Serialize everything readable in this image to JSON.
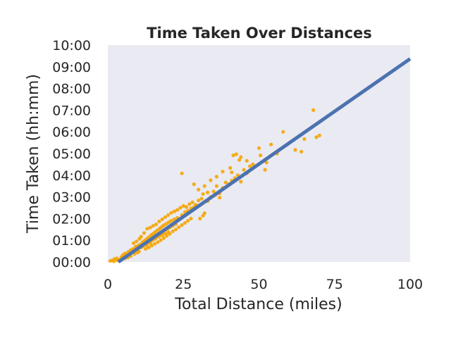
{
  "chart_data": {
    "type": "scatter",
    "title": "Time Taken Over Distances",
    "xlabel": "Total Distance (miles)",
    "ylabel": "Time Taken (hh:mm)",
    "xlim": [
      0,
      100
    ],
    "ylim": [
      0,
      600
    ],
    "y_unit": "minutes",
    "grid": false,
    "x_ticks": [
      0,
      25,
      50,
      75,
      100
    ],
    "x_tick_labels": [
      "0",
      "25",
      "50",
      "75",
      "100"
    ],
    "y_ticks": [
      0,
      60,
      120,
      180,
      240,
      300,
      360,
      420,
      480,
      540,
      600
    ],
    "y_tick_labels": [
      "00:00",
      "01:00",
      "02:00",
      "03:00",
      "04:00",
      "05:00",
      "06:00",
      "07:00",
      "08:00",
      "09:00",
      "10:00"
    ],
    "colors": {
      "background": "#eaeaf2",
      "points": "#f5a500",
      "regression": "#4c72b0"
    },
    "regression": {
      "x": [
        3.5,
        100
      ],
      "y": [
        0,
        562
      ]
    },
    "series": [
      {
        "points": [
          [
            0.8,
            3
          ],
          [
            1.5,
            4
          ],
          [
            2.2,
            8
          ],
          [
            3.0,
            10
          ],
          [
            3.8,
            6
          ],
          [
            4.5,
            14
          ],
          [
            5.1,
            20
          ],
          [
            5.8,
            24
          ],
          [
            6.2,
            16
          ],
          [
            6.8,
            28
          ],
          [
            7.1,
            19
          ],
          [
            7.6,
            33
          ],
          [
            8.0,
            26
          ],
          [
            8.4,
            36
          ],
          [
            8.9,
            31
          ],
          [
            9.2,
            42
          ],
          [
            9.6,
            38
          ],
          [
            10.0,
            45
          ],
          [
            10.3,
            29
          ],
          [
            10.7,
            48
          ],
          [
            11.0,
            40
          ],
          [
            11.4,
            54
          ],
          [
            11.7,
            44
          ],
          [
            12.0,
            58
          ],
          [
            12.3,
            50
          ],
          [
            12.6,
            62
          ],
          [
            12.9,
            46
          ],
          [
            13.2,
            66
          ],
          [
            13.5,
            55
          ],
          [
            13.8,
            70
          ],
          [
            14.1,
            52
          ],
          [
            14.4,
            75
          ],
          [
            14.7,
            60
          ],
          [
            15.0,
            78
          ],
          [
            15.3,
            63
          ],
          [
            15.6,
            82
          ],
          [
            15.9,
            68
          ],
          [
            16.2,
            86
          ],
          [
            16.5,
            72
          ],
          [
            16.8,
            90
          ],
          [
            17.1,
            76
          ],
          [
            17.4,
            94
          ],
          [
            17.7,
            80
          ],
          [
            18.0,
            98
          ],
          [
            18.3,
            84
          ],
          [
            18.6,
            102
          ],
          [
            19.0,
            88
          ],
          [
            19.4,
            106
          ],
          [
            19.8,
            92
          ],
          [
            20.2,
            110
          ],
          [
            20.6,
            96
          ],
          [
            21.0,
            114
          ],
          [
            21.5,
            100
          ],
          [
            22.0,
            118
          ],
          [
            22.5,
            105
          ],
          [
            23.0,
            122
          ],
          [
            11.0,
            70
          ],
          [
            12.0,
            80
          ],
          [
            13.0,
            92
          ],
          [
            10.5,
            64
          ],
          [
            9.5,
            57
          ],
          [
            8.5,
            52
          ],
          [
            14.0,
            95
          ],
          [
            15.0,
            100
          ],
          [
            16.0,
            104
          ],
          [
            17.0,
            112
          ],
          [
            18.0,
            118
          ],
          [
            19.0,
            124
          ],
          [
            20.0,
            130
          ],
          [
            21.0,
            136
          ],
          [
            22.0,
            140
          ],
          [
            23.0,
            144
          ],
          [
            24.0,
            150
          ],
          [
            25.0,
            155
          ],
          [
            26.0,
            152
          ],
          [
            27.0,
            160
          ],
          [
            28.0,
            165
          ],
          [
            29.0,
            158
          ],
          [
            30.0,
            170
          ],
          [
            31.0,
            175
          ],
          [
            24.5,
            130
          ],
          [
            25.5,
            138
          ],
          [
            26.5,
            142
          ],
          [
            27.5,
            148
          ],
          [
            28.5,
            152
          ],
          [
            29.5,
            156
          ],
          [
            30.5,
            120
          ],
          [
            31.5,
            128
          ],
          [
            32.0,
            135
          ],
          [
            33.0,
            168
          ],
          [
            34.0,
            180
          ],
          [
            35.0,
            195
          ],
          [
            36.0,
            210
          ],
          [
            37.0,
            190
          ],
          [
            38.0,
            205
          ],
          [
            39.0,
            220
          ],
          [
            40.0,
            215
          ],
          [
            41.0,
            225
          ],
          [
            42.0,
            232
          ],
          [
            43.0,
            240
          ],
          [
            44.0,
            222
          ],
          [
            45.0,
            255
          ],
          [
            46.0,
            245
          ],
          [
            47.0,
            265
          ],
          [
            30.0,
            200
          ],
          [
            32.0,
            210
          ],
          [
            34.0,
            226
          ],
          [
            36.0,
            236
          ],
          [
            38.0,
            250
          ],
          [
            24.5,
            245
          ],
          [
            28.5,
            215
          ],
          [
            31.5,
            188
          ],
          [
            33.0,
            192
          ],
          [
            35.5,
            185
          ],
          [
            37.0,
            178
          ],
          [
            40.5,
            260
          ],
          [
            41.5,
            295
          ],
          [
            42.5,
            298
          ],
          [
            43.5,
            282
          ],
          [
            41.0,
            248
          ],
          [
            44.0,
            290
          ],
          [
            46.0,
            280
          ],
          [
            48.0,
            270
          ],
          [
            50.0,
            315
          ],
          [
            50.5,
            295
          ],
          [
            52.0,
            255
          ],
          [
            52.5,
            275
          ],
          [
            54.0,
            325
          ],
          [
            56.0,
            300
          ],
          [
            58.0,
            360
          ],
          [
            62.0,
            310
          ],
          [
            64.0,
            305
          ],
          [
            65.0,
            340
          ],
          [
            68.0,
            420
          ],
          [
            69.0,
            345
          ],
          [
            70.0,
            350
          ],
          [
            12.5,
            36
          ],
          [
            13.5,
            40
          ],
          [
            14.5,
            45
          ],
          [
            15.5,
            50
          ],
          [
            16.5,
            55
          ],
          [
            17.5,
            60
          ],
          [
            18.5,
            66
          ],
          [
            19.5,
            72
          ],
          [
            20.5,
            78
          ],
          [
            21.5,
            85
          ],
          [
            22.5,
            90
          ],
          [
            23.5,
            96
          ],
          [
            24.5,
            102
          ],
          [
            25.5,
            108
          ],
          [
            26.5,
            114
          ],
          [
            27.5,
            120
          ],
          [
            5.0,
            12
          ],
          [
            6.0,
            18
          ],
          [
            7.0,
            22
          ],
          [
            8.0,
            28
          ],
          [
            9.0,
            34
          ],
          [
            10.0,
            38
          ],
          [
            11.0,
            42
          ],
          [
            12.0,
            48
          ],
          [
            13.0,
            52
          ],
          [
            14.0,
            58
          ],
          [
            15.0,
            62
          ],
          [
            16.0,
            66
          ],
          [
            17.0,
            70
          ],
          [
            18.0,
            74
          ],
          [
            19.0,
            78
          ],
          [
            20.0,
            82
          ],
          [
            2.0,
            2
          ],
          [
            3.2,
            4
          ],
          [
            4.4,
            6
          ],
          [
            5.6,
            10
          ],
          [
            6.6,
            12
          ],
          [
            7.6,
            16
          ],
          [
            8.8,
            22
          ],
          [
            9.8,
            26
          ]
        ]
      }
    ]
  }
}
